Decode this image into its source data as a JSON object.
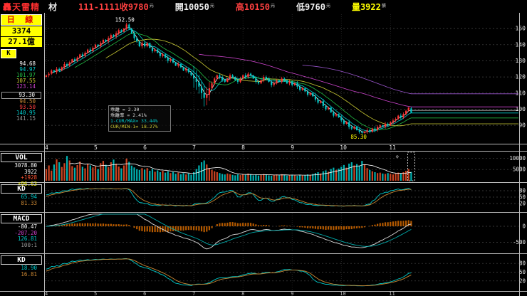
{
  "header": {
    "app_name": "轟天雷精",
    "app_suffix": "材",
    "fields": [
      {
        "key": "id-close",
        "label": "111-1111收",
        "value": "9780",
        "unit": "元",
        "color": "#ff4040"
      },
      {
        "key": "open",
        "label": "開",
        "value": "10050",
        "unit": "元",
        "color": "#f0f0f0"
      },
      {
        "key": "high",
        "label": "高",
        "value": "10150",
        "unit": "元",
        "color": "#ff4040"
      },
      {
        "key": "low",
        "label": "低",
        "value": "9760",
        "unit": "元",
        "color": "#f0f0f0"
      },
      {
        "key": "volume",
        "label": "量",
        "value": "3922",
        "unit": "張",
        "color": "#ffff00"
      }
    ]
  },
  "sidebar": {
    "period_label": "日 線",
    "stock_id": "3374",
    "turnover": "27.1億",
    "k_badge": "K",
    "ma_values": [
      {
        "text": "94.68",
        "color": "#ffffff"
      },
      {
        "text": "94.97",
        "color": "#00cccc"
      },
      {
        "text": "101.97",
        "color": "#22bb44"
      },
      {
        "text": "107.55",
        "color": "#cccc33"
      },
      {
        "text": "123.14",
        "color": "#cc44cc"
      },
      {
        "text": "93.30",
        "color": "#ffffff",
        "boxed": true
      },
      {
        "text": "94.50",
        "color": "#cc8833"
      },
      {
        "text": "93.50",
        "color": "#ff4040"
      },
      {
        "text": "140.95",
        "color": "#00cccc"
      },
      {
        "text": "141.15",
        "color": "#9a9a9a"
      }
    ]
  },
  "panels": {
    "vol": {
      "label": "VOL",
      "values": [
        {
          "text": "3078.80",
          "color": "#ffffff"
        },
        {
          "text": "3922",
          "color": "#ffffff"
        },
        {
          "text": "+1928",
          "color": "#ff5533"
        },
        {
          "text": "+96.63",
          "color": "#ffff00"
        }
      ]
    },
    "kd1": {
      "label": "KD",
      "values": [
        {
          "text": "65.94",
          "color": "#00cccc"
        },
        {
          "text": "81.33",
          "color": "#cc8833"
        }
      ]
    },
    "macd": {
      "label": "MACD",
      "values": [
        {
          "text": "-80.47",
          "color": "#ffffff"
        },
        {
          "text": "-207.20",
          "color": "#cc44cc"
        },
        {
          "text": "126.81",
          "color": "#00cccc"
        },
        {
          "text": "100:1",
          "color": "#9a9a9a"
        }
      ]
    },
    "kd2": {
      "label": "KD",
      "values": [
        {
          "text": "18.90",
          "color": "#00cccc"
        },
        {
          "text": "16.81",
          "color": "#cc8833"
        }
      ]
    }
  },
  "info_box": [
    {
      "text": "乖離   =  2.30",
      "color": "#dddddd"
    },
    {
      "text": "乖離率 =  2.41%",
      "color": "#dddddd"
    },
    {
      "text": "1-CUR/MAX= 33.44%",
      "color": "#00cccc"
    },
    {
      "text": "CUR/MIN-1= 18.27%",
      "color": "#cccc33"
    }
  ],
  "chart_data": {
    "type": "candlestick",
    "title": "3374 日線",
    "price_scale_note": "displayed axis = quoted price / 100; last close 9780 -> 97.8",
    "months": [
      "4",
      "5",
      "6",
      "7",
      "8",
      "9",
      "10",
      "11"
    ],
    "month_start_indices": [
      0,
      19,
      38,
      57,
      76,
      95,
      114,
      133
    ],
    "price_axis_ticks": [
      150,
      140,
      130,
      120,
      110,
      100,
      90
    ],
    "volume_axis_ticks": [
      10000,
      5000
    ],
    "kd_axis_ticks": [
      80,
      50,
      20
    ],
    "macd_axis_ticks": [
      0,
      -500
    ],
    "y_range": [
      83,
      158
    ],
    "volume_range": [
      0,
      12000
    ],
    "annotations": [
      {
        "text": "152.50",
        "value": 152.5,
        "type": "peak",
        "color": "#ffffff"
      },
      {
        "text": "85.30",
        "value": 85.3,
        "type": "trough",
        "color": "#ffff00"
      }
    ],
    "last_candle": {
      "open": 100.5,
      "high": 101.5,
      "low": 97.6,
      "close": 97.8
    },
    "closes": [
      121,
      122,
      124,
      123,
      125,
      124,
      126,
      128,
      127,
      129,
      131,
      130,
      132,
      134,
      133,
      135,
      137,
      136,
      138,
      140,
      139,
      141,
      143,
      142,
      144,
      146,
      145,
      147,
      149,
      148,
      150,
      152.5,
      150,
      147,
      144,
      142,
      139,
      141,
      139,
      141,
      138,
      136,
      137,
      135,
      133,
      134,
      132,
      130,
      131,
      129,
      127,
      128,
      126,
      124,
      125,
      123,
      121,
      119,
      117,
      114,
      110,
      107,
      109,
      113,
      116,
      119,
      121,
      120,
      118,
      117,
      119,
      121,
      120,
      118,
      117,
      119,
      121,
      120,
      122,
      121,
      119,
      117,
      116,
      118,
      120,
      119,
      117,
      115,
      116,
      118,
      117,
      119,
      118,
      116,
      117,
      115,
      116,
      114,
      112,
      113,
      111,
      109,
      110,
      108,
      106,
      104,
      105,
      102,
      100,
      101,
      98,
      96,
      97,
      95,
      93,
      91,
      92,
      89,
      88,
      89,
      87,
      86,
      85.3,
      86,
      87,
      86,
      88,
      87,
      89,
      90,
      89,
      91,
      90,
      92,
      93,
      94,
      96,
      95,
      97,
      99,
      101,
      97.8
    ],
    "volumes": [
      5200,
      6800,
      4500,
      7200,
      9500,
      8200,
      6100,
      7800,
      11000,
      9000,
      6500,
      5800,
      7000,
      8500,
      6200,
      5500,
      7400,
      6800,
      5900,
      6400,
      5200,
      7800,
      8800,
      7100,
      6000,
      8200,
      9400,
      7600,
      6300,
      5500,
      6800,
      9800,
      8400,
      6700,
      5900,
      5100,
      4800,
      5600,
      4900,
      5600,
      4400,
      5200,
      4000,
      4600,
      3800,
      4400,
      3600,
      4200,
      3400,
      3900,
      3100,
      3600,
      2900,
      3400,
      2800,
      3200,
      2700,
      3800,
      5200,
      6800,
      8200,
      9000,
      7200,
      5600,
      4800,
      4200,
      3800,
      3400,
      3000,
      2800,
      3200,
      2900,
      2600,
      2400,
      2800,
      2500,
      2900,
      2600,
      3200,
      2800,
      2400,
      2700,
      2300,
      2600,
      3000,
      2700,
      2400,
      2200,
      2500,
      2800,
      2500,
      2900,
      2600,
      2300,
      2500,
      2700,
      2400,
      2200,
      2600,
      2300,
      2500,
      2800,
      2600,
      3000,
      3400,
      3800,
      3200,
      4200,
      4600,
      4000,
      5200,
      5800,
      4800,
      5400,
      6200,
      7000,
      5800,
      7600,
      8200,
      6800,
      7400,
      6600,
      8800,
      7200,
      5600,
      4800,
      4200,
      3800,
      3400,
      3600,
      3200,
      3000,
      3400,
      3100,
      2800,
      3200,
      3600,
      3300,
      3800,
      4400,
      5200,
      3922
    ]
  },
  "colors": {
    "up": "#ff3232",
    "down": "#00c8c8",
    "flat": "#e8e8e8",
    "ma": [
      "#e8e8e8",
      "#00cccc",
      "#22bb44",
      "#cccc33",
      "#cc44cc",
      "#9955cc"
    ],
    "vol_ma": "#ffffff",
    "k_line": "#00cccc",
    "d_line": "#cc8833",
    "macd_hist": "#b35900",
    "dif_line": "#dddddd",
    "dea_line": "#00aaaa",
    "grid": "#484848",
    "vgrid": "#333333",
    "axis_text": "#e8e8e8"
  }
}
